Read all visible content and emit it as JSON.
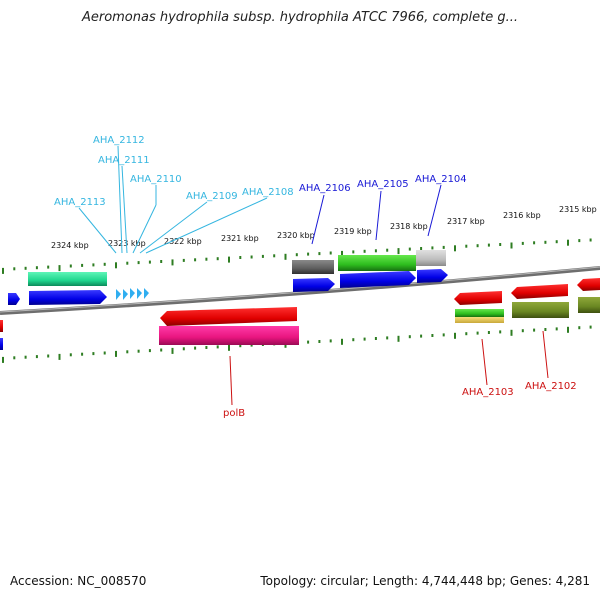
{
  "title": "Aeromonas hydrophila subsp. hydrophila ATCC 7966, complete g...",
  "footer": {
    "accession": "Accession: NC_008570",
    "topology": "Topology: circular; Length: 4,744,448 bp; Genes: 4,281"
  },
  "colors": {
    "backbone": "#7f7f7f",
    "tick": "#2e7d22",
    "cyan_label": "#35b6e0",
    "blue_label": "#1a1ad6",
    "red_label": "#cc1111"
  },
  "ticks": [
    {
      "label": "2324 kbp"
    },
    {
      "label": "2323 kbp"
    },
    {
      "label": "2322 kbp"
    },
    {
      "label": "2321 kbp"
    },
    {
      "label": "2320 kbp"
    },
    {
      "label": "2319 kbp"
    },
    {
      "label": "2318 kbp"
    },
    {
      "label": "2317 kbp"
    },
    {
      "label": "2316 kbp"
    },
    {
      "label": "2315 kbp"
    }
  ],
  "gene_labels": [
    {
      "name": "AHA_2112"
    },
    {
      "name": "AHA_2111"
    },
    {
      "name": "AHA_2110"
    },
    {
      "name": "AHA_2109"
    },
    {
      "name": "AHA_2108"
    },
    {
      "name": "AHA_2113"
    },
    {
      "name": "AHA_2106"
    },
    {
      "name": "AHA_2105"
    },
    {
      "name": "AHA_2104"
    },
    {
      "name": "polB"
    },
    {
      "name": "AHA_2103"
    },
    {
      "name": "AHA_2102"
    }
  ]
}
